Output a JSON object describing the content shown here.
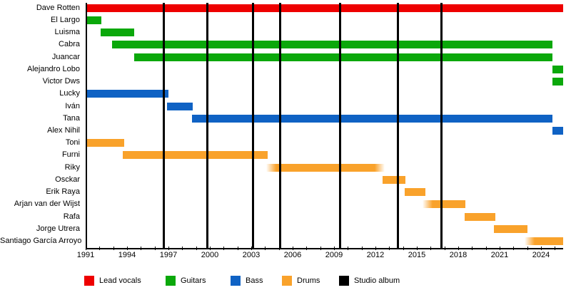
{
  "chart_data": {
    "type": "timeline",
    "description": "Band line-up timeline with studio album markers",
    "x_axis": {
      "start": 1991,
      "end": 2025.5,
      "minor_tick_interval_years": 1,
      "year_labels": [
        1991,
        1994,
        1997,
        2000,
        2003,
        2006,
        2009,
        2012,
        2015,
        2018,
        2021,
        2024
      ]
    },
    "colors": {
      "lead_vocals": "#ee0000",
      "guitars": "#0ba80b",
      "bass": "#0f62c4",
      "drums": "#f9a22b",
      "studio_album": "#000000"
    },
    "members": [
      {
        "name": "Dave Rotten",
        "role": "lead_vocals",
        "start": 1991.0,
        "end": 2025.5
      },
      {
        "name": "El Largo",
        "role": "guitars",
        "start": 1991.0,
        "end": 1992.05
      },
      {
        "name": "Luisma",
        "role": "guitars",
        "start": 1992.0,
        "end": 1994.4
      },
      {
        "name": "Cabra",
        "role": "guitars",
        "start": 1992.8,
        "end": 2024.7
      },
      {
        "name": "Juancar",
        "role": "guitars",
        "start": 1994.4,
        "end": 2024.7
      },
      {
        "name": "Alejandro Lobo",
        "role": "guitars",
        "start": 2024.7,
        "end": 2025.5
      },
      {
        "name": "Victor Dws",
        "role": "guitars",
        "start": 2024.7,
        "end": 2025.5
      },
      {
        "name": "Lucky",
        "role": "bass",
        "start": 1991.0,
        "end": 1996.9
      },
      {
        "name": "Iván",
        "role": "bass",
        "start": 1996.8,
        "end": 1998.65
      },
      {
        "name": "Tana",
        "role": "bass",
        "start": 1998.6,
        "end": 2024.7
      },
      {
        "name": "Alex Nihil",
        "role": "bass",
        "start": 2024.7,
        "end": 2025.5
      },
      {
        "name": "Toni",
        "role": "drums",
        "start": 1991.0,
        "end": 1993.7
      },
      {
        "name": "Furni",
        "role": "drums",
        "start": 1993.6,
        "end": 2004.1
      },
      {
        "name": "Riky",
        "role": "drums",
        "start": 2004.0,
        "end": 2012.55,
        "fade_left": true,
        "fade_right": true
      },
      {
        "name": "Osckar",
        "role": "drums",
        "start": 2012.4,
        "end": 2014.05
      },
      {
        "name": "Erik Raya",
        "role": "drums",
        "start": 2014.0,
        "end": 2015.5
      },
      {
        "name": "Arjan van der Wijst",
        "role": "drums",
        "start": 2015.3,
        "end": 2018.4,
        "fade_left": true
      },
      {
        "name": "Rafa",
        "role": "drums",
        "start": 2018.35,
        "end": 2020.6
      },
      {
        "name": "Jorge Utrera",
        "role": "drums",
        "start": 2020.5,
        "end": 2022.9
      },
      {
        "name": "Santiago García Arroyo",
        "role": "drums",
        "start": 2022.7,
        "end": 2025.5,
        "fade_left": true
      }
    ],
    "studio_albums_years": [
      1996.55,
      1999.7,
      2003.0,
      2005.0,
      2009.35,
      2013.55,
      2016.7
    ],
    "legend": [
      {
        "label": "Lead vocals",
        "role": "lead_vocals"
      },
      {
        "label": "Guitars",
        "role": "guitars"
      },
      {
        "label": "Bass",
        "role": "bass"
      },
      {
        "label": "Drums",
        "role": "drums"
      },
      {
        "label": "Studio album",
        "role": "studio_album"
      }
    ],
    "legend_position": "bottom",
    "grid": false
  }
}
